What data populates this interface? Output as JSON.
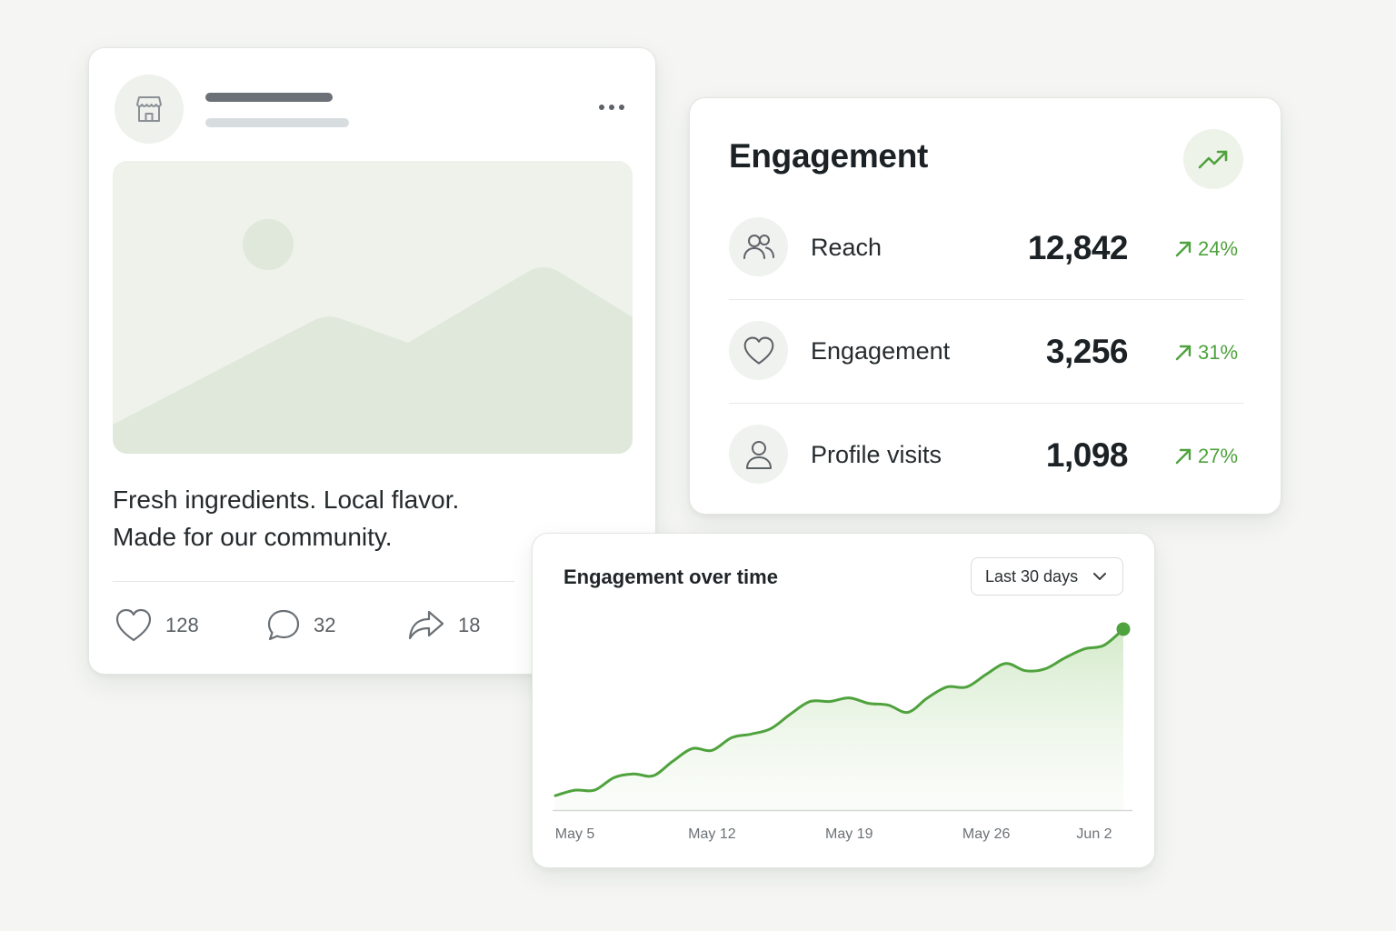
{
  "post": {
    "caption_line1": "Fresh ingredients. Local flavor.",
    "caption_line2": "Made for our community.",
    "icons": {
      "avatar": "storefront-icon",
      "menu": "more-horizontal-icon",
      "image": "image-placeholder-icon"
    },
    "actions": [
      {
        "icon": "heart-icon",
        "count": "128"
      },
      {
        "icon": "comment-icon",
        "count": "32"
      },
      {
        "icon": "share-icon",
        "count": "18"
      }
    ]
  },
  "engagement": {
    "title": "Engagement",
    "trend_icon": "trending-up-icon",
    "metrics": [
      {
        "icon": "users-icon",
        "label": "Reach",
        "value": "12,842",
        "change": "24%"
      },
      {
        "icon": "heart-icon",
        "label": "Engagement",
        "value": "3,256",
        "change": "31%"
      },
      {
        "icon": "user-icon",
        "label": "Profile visits",
        "value": "1,098",
        "change": "27%"
      }
    ]
  },
  "chart": {
    "title": "Engagement over time",
    "range_label": "Last 30 days",
    "range_icon": "chevron-down-icon"
  },
  "colors": {
    "accent": "#4fa23d",
    "accent_fill": "#cfe8c4",
    "placeholder": "#dfe8da",
    "background": "#f5f6f4"
  },
  "chart_data": {
    "type": "area",
    "title": "Engagement over time",
    "xlabel": "",
    "ylabel": "",
    "x_ticks": [
      "May 5",
      "May 12",
      "May 19",
      "May 26",
      "Jun 2"
    ],
    "x": [
      "May 4",
      "May 5",
      "May 6",
      "May 7",
      "May 8",
      "May 9",
      "May 10",
      "May 11",
      "May 12",
      "May 13",
      "May 14",
      "May 15",
      "May 16",
      "May 17",
      "May 18",
      "May 19",
      "May 20",
      "May 21",
      "May 22",
      "May 23",
      "May 24",
      "May 25",
      "May 26",
      "May 27",
      "May 28",
      "May 29",
      "May 30",
      "May 31",
      "Jun 1",
      "Jun 2"
    ],
    "values": [
      8,
      11,
      11,
      18,
      20,
      19,
      27,
      34,
      33,
      40,
      42,
      45,
      53,
      60,
      60,
      62,
      59,
      58,
      54,
      62,
      68,
      68,
      75,
      81,
      77,
      78,
      84,
      89,
      91,
      100
    ],
    "ylim": [
      0,
      105
    ],
    "grid": false,
    "legend": "none",
    "highlight_last_point": true
  }
}
